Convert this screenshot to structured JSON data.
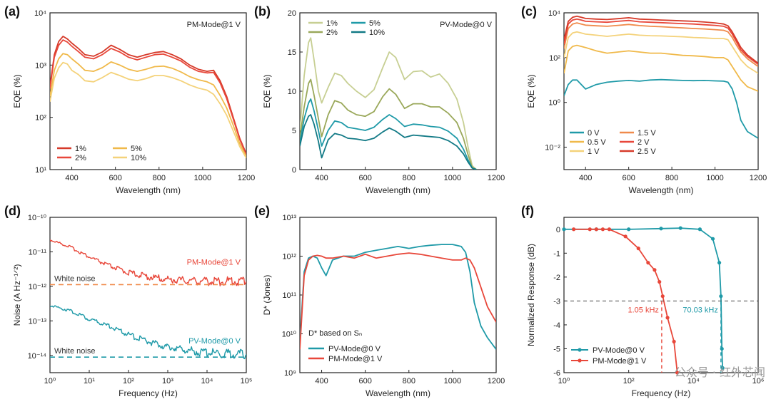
{
  "colors": {
    "red": "#d63a2a",
    "red2": "#e8473a",
    "orange": "#f08a4b",
    "gold": "#f0b94a",
    "yellow": "#f4d27a",
    "teal": "#1f9aa8",
    "teal_dark": "#127a86",
    "olive": "#9aa85a",
    "light_olive": "#c7cf93",
    "axis": "#222222",
    "gray": "#555555"
  },
  "watermark": "公众号 · 红外芯闻",
  "chart_data": [
    {
      "panel": "(a)",
      "type": "line",
      "title": "PM-Mode@1 V",
      "xlabel": "Wavelength (nm)",
      "ylabel": "EQE (%)",
      "xlim": [
        300,
        1200
      ],
      "ylim": [
        1,
        4
      ],
      "yscale": "log",
      "xticks": [
        "400",
        "600",
        "800",
        "1000",
        "1200"
      ],
      "yticks": [
        {
          "v": 1,
          "t": "10¹"
        },
        {
          "v": 2,
          "t": "10²"
        },
        {
          "v": 3,
          "t": "10³"
        },
        {
          "v": 4,
          "t": "10⁴"
        }
      ],
      "legend": [
        "1%",
        "2%",
        "5%",
        "10%"
      ],
      "x": [
        300,
        320,
        340,
        360,
        380,
        400,
        430,
        460,
        500,
        540,
        580,
        620,
        660,
        700,
        740,
        780,
        820,
        860,
        900,
        940,
        980,
        1020,
        1050,
        1080,
        1110,
        1140,
        1170,
        1200
      ],
      "series": [
        {
          "name": "1%",
          "values": [
            2.6,
            3.2,
            3.45,
            3.55,
            3.5,
            3.42,
            3.32,
            3.2,
            3.17,
            3.25,
            3.38,
            3.3,
            3.2,
            3.15,
            3.2,
            3.24,
            3.26,
            3.2,
            3.12,
            3.0,
            2.92,
            2.88,
            2.9,
            2.7,
            2.4,
            2.0,
            1.6,
            1.3
          ]
        },
        {
          "name": "2%",
          "values": [
            2.55,
            3.15,
            3.38,
            3.48,
            3.44,
            3.36,
            3.26,
            3.15,
            3.12,
            3.2,
            3.32,
            3.25,
            3.15,
            3.1,
            3.15,
            3.2,
            3.21,
            3.15,
            3.08,
            2.96,
            2.88,
            2.85,
            2.86,
            2.66,
            2.36,
            1.97,
            1.58,
            1.28
          ]
        },
        {
          "name": "5%",
          "values": [
            2.4,
            2.9,
            3.12,
            3.22,
            3.2,
            3.12,
            3.02,
            2.9,
            2.88,
            2.95,
            3.06,
            3.0,
            2.92,
            2.88,
            2.92,
            2.97,
            2.98,
            2.94,
            2.87,
            2.78,
            2.72,
            2.68,
            2.62,
            2.42,
            2.18,
            1.85,
            1.5,
            1.25
          ]
        },
        {
          "name": "10%",
          "values": [
            2.3,
            2.75,
            2.95,
            3.05,
            3.02,
            2.9,
            2.82,
            2.7,
            2.68,
            2.76,
            2.86,
            2.8,
            2.73,
            2.7,
            2.74,
            2.8,
            2.8,
            2.76,
            2.7,
            2.62,
            2.56,
            2.52,
            2.44,
            2.26,
            2.04,
            1.74,
            1.44,
            1.22
          ]
        }
      ]
    },
    {
      "panel": "(b)",
      "type": "line",
      "title": "PV-Mode@0 V",
      "xlabel": "Wavelength (nm)",
      "ylabel": "EQE (%)",
      "xlim": [
        300,
        1200
      ],
      "ylim": [
        0,
        20
      ],
      "yscale": "linear",
      "xticks": [
        "400",
        "600",
        "800",
        "1000",
        "1200"
      ],
      "yticks": [
        {
          "v": 0,
          "t": "0"
        },
        {
          "v": 5,
          "t": "5"
        },
        {
          "v": 10,
          "t": "10"
        },
        {
          "v": 15,
          "t": "15"
        },
        {
          "v": 20,
          "t": "20"
        }
      ],
      "legend": [
        "1%",
        "2%",
        "5%",
        "10%"
      ],
      "x": [
        300,
        320,
        340,
        350,
        365,
        385,
        400,
        430,
        460,
        490,
        520,
        560,
        600,
        640,
        680,
        710,
        740,
        780,
        820,
        860,
        900,
        940,
        980,
        1020,
        1050,
        1070,
        1090,
        1110
      ],
      "series": [
        {
          "name": "1%",
          "values": [
            5,
            12,
            16.2,
            16.8,
            14,
            10,
            8.5,
            10.5,
            12.3,
            12,
            11,
            10,
            9.2,
            10.2,
            13,
            15,
            14.3,
            11.5,
            12.5,
            12.6,
            11.8,
            12.2,
            11,
            9,
            6,
            3,
            0.5,
            0
          ]
        },
        {
          "name": "2%",
          "values": [
            4,
            8,
            11,
            11.5,
            9.5,
            6.5,
            4.2,
            7,
            8.8,
            8.5,
            7.6,
            7,
            6.8,
            7.4,
            9.3,
            10.3,
            9.6,
            7.8,
            8.4,
            8.4,
            8,
            8,
            7.2,
            6,
            4,
            2,
            0.3,
            0
          ]
        },
        {
          "name": "5%",
          "values": [
            3.5,
            6.5,
            8.5,
            9,
            7.5,
            5,
            3,
            5,
            6.2,
            6,
            5.4,
            5.2,
            5,
            5.4,
            6.4,
            7,
            6.5,
            5.5,
            5.8,
            5.7,
            5.5,
            5.4,
            4.9,
            4,
            2.6,
            1.3,
            0.2,
            0
          ]
        },
        {
          "name": "10%",
          "values": [
            3,
            5.5,
            6.8,
            7,
            5.8,
            3.6,
            1.5,
            3.8,
            4.6,
            4.4,
            4,
            3.9,
            3.7,
            4,
            4.8,
            5.3,
            4.9,
            4.1,
            4.4,
            4.3,
            4.2,
            4.1,
            3.7,
            3,
            2,
            1,
            0.2,
            0
          ]
        }
      ]
    },
    {
      "panel": "(c)",
      "type": "line",
      "xlabel": "Wavelength (nm)",
      "ylabel": "EQE (%)",
      "xlim": [
        300,
        1200
      ],
      "ylim": [
        -3,
        4
      ],
      "yscale": "log",
      "xticks": [
        "400",
        "600",
        "800",
        "1000",
        "1200"
      ],
      "yticks": [
        {
          "v": -2,
          "t": "10⁻²"
        },
        {
          "v": 0,
          "t": "10⁰"
        },
        {
          "v": 2,
          "t": "10²"
        },
        {
          "v": 4,
          "t": "10⁴"
        }
      ],
      "legend": [
        "0 V",
        "0.5 V",
        "1 V",
        "1.5 V",
        "2 V",
        "2.5 V"
      ],
      "x": [
        300,
        320,
        340,
        360,
        380,
        400,
        450,
        500,
        550,
        600,
        650,
        700,
        750,
        800,
        850,
        900,
        950,
        1000,
        1040,
        1060,
        1080,
        1100,
        1120,
        1150,
        1200
      ],
      "series": [
        {
          "name": "0 V",
          "values": [
            0.3,
            0.8,
            1.0,
            1.0,
            0.8,
            0.6,
            0.8,
            0.9,
            0.95,
            0.98,
            0.95,
            1.0,
            1.02,
            1.0,
            0.98,
            0.97,
            0.98,
            0.96,
            0.95,
            0.9,
            0.6,
            0,
            -0.8,
            -1.3,
            -1.6
          ]
        },
        {
          "name": "0.5 V",
          "values": [
            1.3,
            2.3,
            2.5,
            2.55,
            2.5,
            2.45,
            2.3,
            2.2,
            2.25,
            2.3,
            2.25,
            2.2,
            2.2,
            2.15,
            2.1,
            2.08,
            2.05,
            2.0,
            2.0,
            1.9,
            1.6,
            1.3,
            1.0,
            0.7,
            0.5
          ]
        },
        {
          "name": "1 V",
          "values": [
            2.0,
            2.9,
            3.1,
            3.15,
            3.1,
            3.05,
            3.0,
            2.95,
            3.0,
            3.05,
            3.0,
            2.98,
            2.97,
            2.95,
            2.93,
            2.9,
            2.88,
            2.85,
            2.85,
            2.8,
            2.5,
            2.2,
            1.9,
            1.6,
            1.3
          ]
        },
        {
          "name": "1.5 V",
          "values": [
            2.4,
            3.3,
            3.5,
            3.55,
            3.5,
            3.45,
            3.42,
            3.4,
            3.44,
            3.48,
            3.43,
            3.4,
            3.38,
            3.35,
            3.33,
            3.3,
            3.28,
            3.25,
            3.22,
            3.15,
            2.9,
            2.55,
            2.25,
            1.95,
            1.6
          ]
        },
        {
          "name": "2 V",
          "values": [
            2.6,
            3.5,
            3.68,
            3.72,
            3.68,
            3.62,
            3.6,
            3.58,
            3.62,
            3.66,
            3.6,
            3.58,
            3.56,
            3.54,
            3.52,
            3.5,
            3.47,
            3.44,
            3.4,
            3.32,
            3.05,
            2.7,
            2.35,
            2.05,
            1.7
          ]
        },
        {
          "name": "2.5 V",
          "values": [
            2.8,
            3.62,
            3.8,
            3.85,
            3.8,
            3.75,
            3.72,
            3.7,
            3.74,
            3.78,
            3.72,
            3.7,
            3.68,
            3.66,
            3.64,
            3.62,
            3.59,
            3.55,
            3.5,
            3.42,
            3.15,
            2.8,
            2.45,
            2.12,
            1.75
          ]
        }
      ]
    },
    {
      "panel": "(d)",
      "type": "line",
      "xlabel": "Frequency (Hz)",
      "ylabel": "Noise (A Hz⁻¹ᐟ²)",
      "xlim": [
        0,
        5
      ],
      "xscale": "log",
      "ylim": [
        -14.5,
        -10
      ],
      "yscale": "log",
      "xticks": [
        {
          "v": 0,
          "t": "10⁰"
        },
        {
          "v": 1,
          "t": "10¹"
        },
        {
          "v": 2,
          "t": "10²"
        },
        {
          "v": 3,
          "t": "10³"
        },
        {
          "v": 4,
          "t": "10⁴"
        },
        {
          "v": 5,
          "t": "10⁵"
        }
      ],
      "yticks": [
        {
          "v": -14,
          "t": "10⁻¹⁴"
        },
        {
          "v": -13,
          "t": "10⁻¹³"
        },
        {
          "v": -12,
          "t": "10⁻¹²"
        },
        {
          "v": -11,
          "t": "10⁻¹¹"
        },
        {
          "v": -10,
          "t": "10⁻¹⁰"
        }
      ],
      "series": [
        {
          "name": "PM-Mode@1 V",
          "x": [
            0,
            0.5,
            1,
            1.5,
            2,
            2.5,
            3,
            3.5,
            4,
            4.5,
            5
          ],
          "values": [
            -10.65,
            -10.85,
            -11.15,
            -11.4,
            -11.6,
            -11.72,
            -11.8,
            -11.83,
            -11.85,
            -11.85,
            -11.85
          ]
        },
        {
          "name": "PV-Mode@0 V",
          "x": [
            0,
            0.5,
            1,
            1.5,
            2,
            2.5,
            3,
            3.5,
            4,
            4.5,
            5
          ],
          "values": [
            -12.55,
            -12.7,
            -12.95,
            -13.15,
            -13.4,
            -13.6,
            -13.75,
            -13.85,
            -13.92,
            -13.95,
            -13.97
          ]
        }
      ],
      "white_noise": [
        {
          "label": "White noise",
          "level": -11.95,
          "color": "#f08a4b"
        },
        {
          "label": "White noise",
          "level": -14.05,
          "color": "#1f9aa8"
        }
      ],
      "annotations": [
        "PM-Mode@1 V",
        "PV-Mode@0 V"
      ]
    },
    {
      "panel": "(e)",
      "type": "line",
      "xlabel": "Wavelength (nm)",
      "ylabel": "D* (Jones)",
      "xlim": [
        300,
        1200
      ],
      "ylim": [
        9,
        13
      ],
      "yscale": "log",
      "xticks": [
        "400",
        "600",
        "800",
        "1000",
        "1200"
      ],
      "yticks": [
        {
          "v": 9,
          "t": "10⁹"
        },
        {
          "v": 10,
          "t": "10¹⁰"
        },
        {
          "v": 11,
          "t": "10¹¹"
        },
        {
          "v": 12,
          "t": "10¹²"
        },
        {
          "v": 13,
          "t": "10¹³"
        }
      ],
      "caption": "D* based on Sₙ",
      "legend": [
        "PV-Mode@0 V",
        "PM-Mode@1 V"
      ],
      "x": [
        300,
        320,
        340,
        360,
        380,
        400,
        420,
        450,
        500,
        550,
        600,
        650,
        700,
        750,
        800,
        850,
        900,
        950,
        1000,
        1040,
        1060,
        1080,
        1100,
        1130,
        1160,
        1200
      ],
      "series": [
        {
          "name": "PV-Mode@0 V",
          "values": [
            9.8,
            11.6,
            11.95,
            12.0,
            11.95,
            11.7,
            11.5,
            11.9,
            12.0,
            12.0,
            12.1,
            12.15,
            12.2,
            12.25,
            12.2,
            12.25,
            12.28,
            12.3,
            12.3,
            12.25,
            12.1,
            11.6,
            10.8,
            10.2,
            9.9,
            9.6
          ]
        },
        {
          "name": "PM-Mode@1 V",
          "values": [
            9.6,
            11.5,
            11.9,
            12.0,
            12.02,
            12.0,
            11.95,
            11.95,
            12.0,
            11.95,
            12.05,
            11.95,
            12.0,
            12.05,
            12.08,
            12.05,
            12.0,
            11.95,
            11.9,
            11.9,
            11.95,
            11.9,
            11.7,
            11.2,
            10.7,
            10.3
          ]
        }
      ]
    },
    {
      "panel": "(f)",
      "type": "line",
      "xlabel": "Frequency (Hz)",
      "ylabel": "Normalized Response (dB)",
      "xlim": [
        0,
        6
      ],
      "xscale": "log",
      "ylim": [
        -6,
        0.5
      ],
      "xticks": [
        {
          "v": 0,
          "t": "10⁰"
        },
        {
          "v": 2,
          "t": "10²"
        },
        {
          "v": 4,
          "t": "10⁴"
        },
        {
          "v": 6,
          "t": "10⁶"
        }
      ],
      "yticks": [
        {
          "v": 0,
          "t": "0"
        },
        {
          "v": -1,
          "t": "-1"
        },
        {
          "v": -2,
          "t": "-2"
        },
        {
          "v": -3,
          "t": "-3"
        },
        {
          "v": -4,
          "t": "-4"
        },
        {
          "v": -5,
          "t": "-5"
        },
        {
          "v": -6,
          "t": "-6"
        }
      ],
      "legend": [
        "PV-Mode@0 V",
        "PM-Mode@1 V"
      ],
      "series": [
        {
          "name": "PV-Mode@0 V",
          "x": [
            0,
            1,
            2,
            3,
            3.6,
            4.2,
            4.6,
            4.8,
            4.85,
            4.88,
            4.9
          ],
          "values": [
            0,
            0,
            0,
            0.03,
            0.05,
            0,
            -0.4,
            -1.4,
            -2.8,
            -5,
            -5.8
          ]
        },
        {
          "name": "PM-Mode@1 V",
          "x": [
            0.3,
            0.8,
            1.0,
            1.2,
            1.4,
            1.9,
            2.3,
            2.6,
            2.8,
            2.95,
            3.05,
            3.2,
            3.4,
            3.5
          ],
          "values": [
            0,
            0,
            0,
            0,
            0,
            -0.3,
            -0.8,
            -1.4,
            -1.7,
            -2.2,
            -2.8,
            -3.7,
            -4.7,
            -6
          ]
        }
      ],
      "ref_level": -3,
      "cutoffs": [
        {
          "label": "1.05 kHz",
          "x": 3.02,
          "color": "#e8473a"
        },
        {
          "label": "70.03 kHz",
          "x": 4.85,
          "color": "#1f9aa8"
        }
      ]
    }
  ]
}
